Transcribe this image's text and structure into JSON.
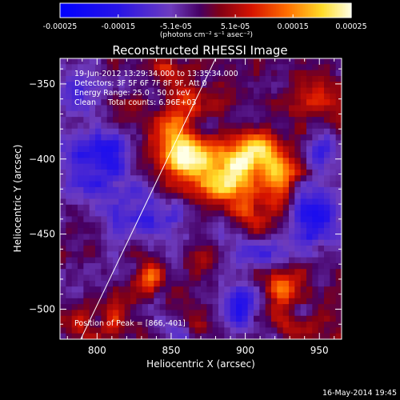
{
  "chart_data": {
    "type": "heatmap",
    "title": "Reconstructed RHESSI Image",
    "xlabel": "Heliocentric X (arcsec)",
    "ylabel": "Heliocentric Y (arcsec)",
    "xlim": [
      775,
      965
    ],
    "ylim": [
      -520,
      -333
    ],
    "xticks": [
      800,
      850,
      900,
      950
    ],
    "yticks": [
      -350,
      -400,
      -450,
      -500
    ],
    "grid": false,
    "colorbar": {
      "range": [
        -0.00025,
        0.00025
      ],
      "tick_values": [
        -0.00025,
        -0.00015,
        -5.1e-05,
        5.1e-05,
        0.00015,
        0.00025
      ],
      "tick_labels": [
        "-0.00025",
        "-0.00015",
        "-5.1e-05",
        "5.1e-05",
        "0.00015",
        "0.00025"
      ],
      "units_label": "(photons cm⁻² s⁻¹ asec⁻²)",
      "placement": "top"
    },
    "annotations": {
      "time_range": "19-Jun-2012 13:29:34.000 to 13:35:34.000",
      "detectors": "Detectors: 3F 5F 6F 7F 8F 9F, Att 0",
      "energy_range": "Energy Range: 25.0 - 50.0 keV",
      "clean_counts": "Clean     Total counts: 6.96E+03",
      "peak_position": "Position of Peak = [866,-401]"
    },
    "peak": {
      "x": 866,
      "y": -401
    },
    "limb_line": {
      "points": [
        [
          789,
          -520
        ],
        [
          880,
          -333
        ]
      ],
      "color": "#ffffff"
    },
    "blobs": [
      {
        "x": 866,
        "y": -401,
        "a": 1.0,
        "sx": 12,
        "sy": 10
      },
      {
        "x": 895,
        "y": -405,
        "a": 0.7,
        "sx": 12,
        "sy": 12
      },
      {
        "x": 912,
        "y": -393,
        "a": 0.65,
        "sx": 10,
        "sy": 10
      },
      {
        "x": 922,
        "y": -412,
        "a": 0.55,
        "sx": 10,
        "sy": 12
      },
      {
        "x": 850,
        "y": -385,
        "a": 0.55,
        "sx": 10,
        "sy": 12
      },
      {
        "x": 860,
        "y": -360,
        "a": 0.5,
        "sx": 8,
        "sy": 9
      },
      {
        "x": 847,
        "y": -342,
        "a": 0.45,
        "sx": 8,
        "sy": 7
      },
      {
        "x": 884,
        "y": -420,
        "a": 0.55,
        "sx": 10,
        "sy": 8
      },
      {
        "x": 905,
        "y": -437,
        "a": 0.35,
        "sx": 9,
        "sy": 8
      },
      {
        "x": 835,
        "y": -480,
        "a": 0.65,
        "sx": 7,
        "sy": 7
      },
      {
        "x": 812,
        "y": -505,
        "a": 0.45,
        "sx": 6,
        "sy": 8
      },
      {
        "x": 925,
        "y": -483,
        "a": 0.55,
        "sx": 8,
        "sy": 10
      },
      {
        "x": 935,
        "y": -513,
        "a": 0.35,
        "sx": 9,
        "sy": 5
      },
      {
        "x": 950,
        "y": -360,
        "a": 0.3,
        "sx": 8,
        "sy": 8
      },
      {
        "x": 790,
        "y": -505,
        "a": 0.3,
        "sx": 6,
        "sy": 8
      },
      {
        "x": 875,
        "y": -465,
        "a": 0.3,
        "sx": 8,
        "sy": 6
      },
      {
        "x": 865,
        "y": -510,
        "a": 0.25,
        "sx": 9,
        "sy": 6
      },
      {
        "x": 800,
        "y": -400,
        "a": -0.55,
        "sx": 15,
        "sy": 20
      },
      {
        "x": 832,
        "y": -440,
        "a": -0.5,
        "sx": 14,
        "sy": 12
      },
      {
        "x": 945,
        "y": -440,
        "a": -0.6,
        "sx": 10,
        "sy": 14
      },
      {
        "x": 920,
        "y": -463,
        "a": -0.45,
        "sx": 14,
        "sy": 8
      },
      {
        "x": 895,
        "y": -500,
        "a": -0.45,
        "sx": 12,
        "sy": 10
      },
      {
        "x": 950,
        "y": -395,
        "a": -0.4,
        "sx": 8,
        "sy": 10
      },
      {
        "x": 785,
        "y": -355,
        "a": -0.35,
        "sx": 10,
        "sy": 10
      },
      {
        "x": 855,
        "y": -515,
        "a": -0.3,
        "sx": 9,
        "sy": 6
      }
    ]
  },
  "footer": {
    "timestamp": "16-May-2014 19:45"
  }
}
